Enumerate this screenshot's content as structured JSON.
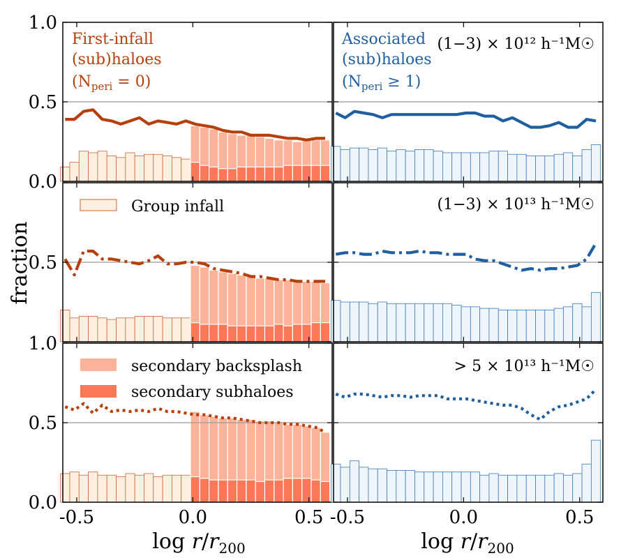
{
  "chart_data": {
    "type": "line",
    "ylabel": "fraction",
    "xlabel": "log r/r200",
    "xlim": [
      -0.56,
      0.6
    ],
    "x_ticks": [
      -0.5,
      0.0,
      0.5
    ],
    "x_tick_labels": [
      "-0.5",
      "0.0",
      "0.5"
    ],
    "y_tick_labels": [
      "0.0",
      "0.5",
      "1.0"
    ],
    "reference_line": 0.5,
    "left_title": {
      "line1": "First-infall",
      "line2": "(sub)haloes",
      "line3": "(N",
      "sub": "peri",
      "tail": " = 0)"
    },
    "right_title": {
      "line1": "Associated",
      "line2": "(sub)haloes",
      "line3": "(N",
      "sub": "peri",
      "tail": " ≥ 1)"
    },
    "legend": {
      "group_infall": "Group infall",
      "secondary_backsplash": "secondary backsplash",
      "secondary_subhaloes": "secondary subhaloes"
    },
    "colors": {
      "first_infall": "#b5400c",
      "associated": "#1f5fa0",
      "group_fill": "#fdf0e0",
      "group_edge": "#c8643a",
      "assoc_fill": "#eef6fb",
      "assoc_edge": "#3a78b5",
      "backsplash": "#fbb49a",
      "subhalo": "#fa7858",
      "refline": "#999999"
    },
    "x": [
      -0.55,
      -0.51,
      -0.47,
      -0.43,
      -0.39,
      -0.35,
      -0.31,
      -0.27,
      -0.23,
      -0.19,
      -0.15,
      -0.11,
      -0.07,
      -0.03,
      0.01,
      0.05,
      0.09,
      0.13,
      0.17,
      0.21,
      0.25,
      0.29,
      0.33,
      0.37,
      0.41,
      0.45,
      0.49,
      0.53,
      0.57
    ],
    "rows": [
      {
        "mass_label": "(1−3) × 10¹² h⁻¹M☉",
        "ylim": [
          0,
          1
        ],
        "first_infall_line": [
          0.39,
          0.39,
          0.44,
          0.45,
          0.39,
          0.38,
          0.36,
          0.38,
          0.4,
          0.36,
          0.38,
          0.37,
          0.36,
          0.38,
          0.36,
          0.35,
          0.34,
          0.32,
          0.31,
          0.31,
          0.29,
          0.29,
          0.29,
          0.28,
          0.27,
          0.27,
          0.26,
          0.27,
          0.27
        ],
        "first_infall_style": "solid",
        "group_bars": [
          0.09,
          0.12,
          0.19,
          0.18,
          0.19,
          0.16,
          0.15,
          0.18,
          0.16,
          0.17,
          0.17,
          0.16,
          0.15,
          0.14
        ],
        "backsplash_bars": [
          0.35,
          0.34,
          0.33,
          0.31,
          0.3,
          0.29,
          0.29,
          0.28,
          0.27,
          0.26,
          0.26,
          0.25,
          0.26,
          0.26,
          0.26
        ],
        "subhalo_bars": [
          0.12,
          0.1,
          0.09,
          0.08,
          0.08,
          0.09,
          0.09,
          0.09,
          0.09,
          0.09,
          0.1,
          0.1,
          0.1,
          0.1,
          0.1
        ],
        "associated_line": [
          0.43,
          0.4,
          0.44,
          0.43,
          0.42,
          0.4,
          0.42,
          0.42,
          0.42,
          0.42,
          0.42,
          0.42,
          0.42,
          0.42,
          0.43,
          0.43,
          0.41,
          0.41,
          0.38,
          0.4,
          0.37,
          0.34,
          0.34,
          0.35,
          0.37,
          0.34,
          0.34,
          0.39,
          0.38
        ],
        "associated_style": "solid",
        "associated_bars": [
          0.22,
          0.2,
          0.21,
          0.21,
          0.2,
          0.21,
          0.19,
          0.2,
          0.19,
          0.2,
          0.2,
          0.19,
          0.18,
          0.18,
          0.18,
          0.18,
          0.18,
          0.19,
          0.19,
          0.17,
          0.17,
          0.16,
          0.16,
          0.16,
          0.17,
          0.18,
          0.16,
          0.2,
          0.23
        ]
      },
      {
        "mass_label": "(1−3) × 10¹³ h⁻¹M☉",
        "ylim": [
          0,
          1
        ],
        "first_infall_line": [
          0.52,
          0.42,
          0.57,
          0.57,
          0.52,
          0.52,
          0.51,
          0.5,
          0.49,
          0.51,
          0.54,
          0.49,
          0.49,
          0.5,
          0.5,
          0.49,
          0.46,
          0.45,
          0.44,
          0.43,
          0.41,
          0.41,
          0.4,
          0.39,
          0.39,
          0.38,
          0.38,
          0.38,
          0.38
        ],
        "first_infall_style": "dashdot",
        "group_bars": [
          0.2,
          0.15,
          0.16,
          0.16,
          0.15,
          0.14,
          0.15,
          0.15,
          0.16,
          0.16,
          0.16,
          0.15,
          0.15,
          0.15
        ],
        "backsplash_bars": [
          0.48,
          0.47,
          0.45,
          0.44,
          0.43,
          0.42,
          0.41,
          0.4,
          0.4,
          0.39,
          0.39,
          0.39,
          0.38,
          0.38,
          0.37
        ],
        "subhalo_bars": [
          0.12,
          0.11,
          0.11,
          0.11,
          0.1,
          0.1,
          0.1,
          0.1,
          0.1,
          0.11,
          0.1,
          0.11,
          0.11,
          0.12,
          0.12
        ],
        "associated_line": [
          0.55,
          0.56,
          0.56,
          0.55,
          0.55,
          0.57,
          0.56,
          0.56,
          0.56,
          0.57,
          0.56,
          0.56,
          0.55,
          0.55,
          0.55,
          0.52,
          0.51,
          0.51,
          0.49,
          0.47,
          0.45,
          0.46,
          0.45,
          0.46,
          0.46,
          0.47,
          0.48,
          0.52,
          0.62
        ],
        "associated_style": "dashdot",
        "associated_bars": [
          0.26,
          0.25,
          0.25,
          0.25,
          0.24,
          0.25,
          0.24,
          0.24,
          0.24,
          0.24,
          0.24,
          0.24,
          0.24,
          0.23,
          0.22,
          0.22,
          0.21,
          0.21,
          0.2,
          0.2,
          0.2,
          0.2,
          0.2,
          0.2,
          0.21,
          0.22,
          0.24,
          0.22,
          0.31
        ]
      },
      {
        "mass_label": "> 5 × 10¹³ h⁻¹M☉",
        "ylim": [
          0,
          1
        ],
        "first_infall_line": [
          0.6,
          0.58,
          0.62,
          0.56,
          0.61,
          0.57,
          0.58,
          0.57,
          0.58,
          0.57,
          0.59,
          0.57,
          0.57,
          0.56,
          0.55,
          0.55,
          0.54,
          0.53,
          0.53,
          0.52,
          0.51,
          0.5,
          0.5,
          0.5,
          0.49,
          0.49,
          0.48,
          0.47,
          0.44
        ],
        "first_infall_style": "dotted",
        "group_bars": [
          0.18,
          0.19,
          0.17,
          0.19,
          0.17,
          0.17,
          0.16,
          0.18,
          0.17,
          0.18,
          0.16,
          0.17,
          0.17,
          0.17
        ],
        "backsplash_bars": [
          0.57,
          0.55,
          0.54,
          0.53,
          0.53,
          0.52,
          0.52,
          0.51,
          0.51,
          0.5,
          0.49,
          0.49,
          0.48,
          0.47,
          0.44
        ],
        "subhalo_bars": [
          0.16,
          0.15,
          0.14,
          0.14,
          0.14,
          0.14,
          0.14,
          0.13,
          0.14,
          0.14,
          0.15,
          0.15,
          0.15,
          0.14,
          0.13
        ],
        "associated_line": [
          0.68,
          0.66,
          0.68,
          0.68,
          0.67,
          0.66,
          0.67,
          0.67,
          0.66,
          0.67,
          0.67,
          0.67,
          0.65,
          0.65,
          0.65,
          0.64,
          0.63,
          0.62,
          0.61,
          0.61,
          0.59,
          0.55,
          0.52,
          0.57,
          0.6,
          0.61,
          0.63,
          0.65,
          0.71
        ],
        "associated_style": "dotted",
        "associated_bars": [
          0.24,
          0.22,
          0.26,
          0.22,
          0.21,
          0.21,
          0.2,
          0.2,
          0.2,
          0.19,
          0.19,
          0.19,
          0.19,
          0.19,
          0.19,
          0.19,
          0.17,
          0.18,
          0.17,
          0.17,
          0.17,
          0.17,
          0.17,
          0.17,
          0.18,
          0.17,
          0.18,
          0.24,
          0.39
        ]
      }
    ]
  }
}
